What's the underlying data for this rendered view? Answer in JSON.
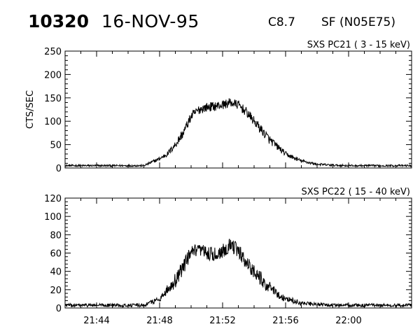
{
  "header": {
    "event_id": "10320",
    "date": "16-NOV-95",
    "goes_class": "C8.7",
    "location": "SF (N05E75)"
  },
  "chart_data": [
    {
      "type": "line",
      "title": "SXS PC21  (  3 - 15 keV)",
      "xlabel": "",
      "ylabel": "CTS/SEC",
      "xlim": [
        "21:42",
        "22:04"
      ],
      "ylim": [
        0,
        250
      ],
      "yticks": [
        0,
        50,
        100,
        150,
        200,
        250
      ],
      "xticks": [
        "21:44",
        "21:48",
        "21:52",
        "21:56",
        "22:00"
      ],
      "show_xtick_labels": false,
      "grid": false,
      "series": [
        {
          "time": [
            "21:42",
            "21:47",
            "21:48",
            "21:48.5",
            "21:49",
            "21:49.5",
            "21:50",
            "21:50.5",
            "21:51",
            "21:51.5",
            "21:52",
            "21:52.5",
            "21:53",
            "21:53.5",
            "21:54",
            "21:54.5",
            "21:55",
            "21:55.5",
            "21:56",
            "21:56.5",
            "21:57",
            "21:58",
            "21:59",
            "22:00",
            "22:02",
            "22:04"
          ],
          "values": [
            5,
            5,
            20,
            30,
            50,
            75,
            110,
            125,
            130,
            132,
            135,
            140,
            135,
            120,
            100,
            80,
            60,
            45,
            30,
            22,
            15,
            8,
            6,
            5,
            5,
            5
          ],
          "noise": 10
        }
      ]
    },
    {
      "type": "line",
      "title": "SXS PC22  ( 15 - 40 keV)",
      "xlabel": "",
      "ylabel": "",
      "xlim": [
        "21:42",
        "22:04"
      ],
      "ylim": [
        0,
        120
      ],
      "yticks": [
        0,
        20,
        40,
        60,
        80,
        100,
        120
      ],
      "xticks": [
        "21:44",
        "21:48",
        "21:52",
        "21:56",
        "22:00"
      ],
      "show_xtick_labels": true,
      "grid": false,
      "series": [
        {
          "time": [
            "21:42",
            "21:47",
            "21:48",
            "21:48.5",
            "21:49",
            "21:49.5",
            "21:50",
            "21:50.5",
            "21:51",
            "21:51.5",
            "21:52",
            "21:52.5",
            "21:53",
            "21:53.5",
            "21:54",
            "21:54.5",
            "21:55",
            "21:55.5",
            "21:56",
            "21:56.5",
            "21:57",
            "21:58",
            "21:59",
            "22:00",
            "22:02",
            "22:04"
          ],
          "values": [
            3,
            3,
            10,
            20,
            30,
            45,
            60,
            62,
            60,
            58,
            62,
            70,
            62,
            50,
            40,
            30,
            22,
            15,
            10,
            8,
            5,
            4,
            3,
            3,
            3,
            3
          ],
          "noise": 8
        }
      ]
    }
  ]
}
